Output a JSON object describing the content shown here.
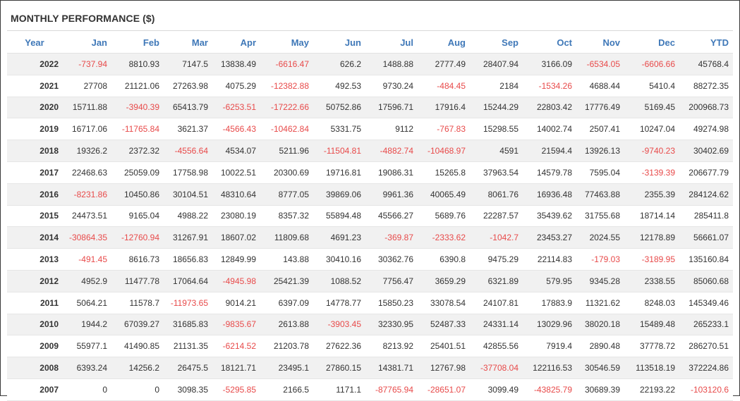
{
  "title": "MONTHLY PERFORMANCE ($)",
  "colors": {
    "header_text": "#3f78b8",
    "negative": "#e84a4a",
    "text": "#333333",
    "stripe": "#f1f1f1"
  },
  "table": {
    "headers": [
      "Year",
      "Jan",
      "Feb",
      "Mar",
      "Apr",
      "May",
      "Jun",
      "Jul",
      "Aug",
      "Sep",
      "Oct",
      "Nov",
      "Dec",
      "YTD"
    ],
    "rows": [
      [
        "2022",
        "-737.94",
        "8810.93",
        "7147.5",
        "13838.49",
        "-6616.47",
        "626.2",
        "1488.88",
        "2777.49",
        "28407.94",
        "3166.09",
        "-6534.05",
        "-6606.66",
        "45768.4"
      ],
      [
        "2021",
        "27708",
        "21121.06",
        "27263.98",
        "4075.29",
        "-12382.88",
        "492.53",
        "9730.24",
        "-484.45",
        "2184",
        "-1534.26",
        "4688.44",
        "5410.4",
        "88272.35"
      ],
      [
        "2020",
        "15711.88",
        "-3940.39",
        "65413.79",
        "-6253.51",
        "-17222.66",
        "50752.86",
        "17596.71",
        "17916.4",
        "15244.29",
        "22803.42",
        "17776.49",
        "5169.45",
        "200968.73"
      ],
      [
        "2019",
        "16717.06",
        "-11765.84",
        "3621.37",
        "-4566.43",
        "-10462.84",
        "5331.75",
        "9112",
        "-767.83",
        "15298.55",
        "14002.74",
        "2507.41",
        "10247.04",
        "49274.98"
      ],
      [
        "2018",
        "19326.2",
        "2372.32",
        "-4556.64",
        "4534.07",
        "5211.96",
        "-11504.81",
        "-4882.74",
        "-10468.97",
        "4591",
        "21594.4",
        "13926.13",
        "-9740.23",
        "30402.69"
      ],
      [
        "2017",
        "22468.63",
        "25059.09",
        "17758.98",
        "10022.51",
        "20300.69",
        "19716.81",
        "19086.31",
        "15265.8",
        "37963.54",
        "14579.78",
        "7595.04",
        "-3139.39",
        "206677.79"
      ],
      [
        "2016",
        "-8231.86",
        "10450.86",
        "30104.51",
        "48310.64",
        "8777.05",
        "39869.06",
        "9961.36",
        "40065.49",
        "8061.76",
        "16936.48",
        "77463.88",
        "2355.39",
        "284124.62"
      ],
      [
        "2015",
        "24473.51",
        "9165.04",
        "4988.22",
        "23080.19",
        "8357.32",
        "55894.48",
        "45566.27",
        "5689.76",
        "22287.57",
        "35439.62",
        "31755.68",
        "18714.14",
        "285411.8"
      ],
      [
        "2014",
        "-30864.35",
        "-12760.94",
        "31267.91",
        "18607.02",
        "11809.68",
        "4691.23",
        "-369.87",
        "-2333.62",
        "-1042.7",
        "23453.27",
        "2024.55",
        "12178.89",
        "56661.07"
      ],
      [
        "2013",
        "-491.45",
        "8616.73",
        "18656.83",
        "12849.99",
        "143.88",
        "30410.16",
        "30362.76",
        "6390.8",
        "9475.29",
        "22114.83",
        "-179.03",
        "-3189.95",
        "135160.84"
      ],
      [
        "2012",
        "4952.9",
        "11477.78",
        "17064.64",
        "-4945.98",
        "25421.39",
        "1088.52",
        "7756.47",
        "3659.29",
        "6321.89",
        "579.95",
        "9345.28",
        "2338.55",
        "85060.68"
      ],
      [
        "2011",
        "5064.21",
        "11578.7",
        "-11973.65",
        "9014.21",
        "6397.09",
        "14778.77",
        "15850.23",
        "33078.54",
        "24107.81",
        "17883.9",
        "11321.62",
        "8248.03",
        "145349.46"
      ],
      [
        "2010",
        "1944.2",
        "67039.27",
        "31685.83",
        "-9835.67",
        "2613.88",
        "-3903.45",
        "32330.95",
        "52487.33",
        "24331.14",
        "13029.96",
        "38020.18",
        "15489.48",
        "265233.1"
      ],
      [
        "2009",
        "55977.1",
        "41490.85",
        "21131.35",
        "-6214.52",
        "21203.78",
        "27622.36",
        "8213.92",
        "25401.51",
        "42855.56",
        "7919.4",
        "2890.48",
        "37778.72",
        "286270.51"
      ],
      [
        "2008",
        "6393.24",
        "14256.2",
        "26475.5",
        "18121.71",
        "23495.1",
        "27860.15",
        "14381.71",
        "12767.98",
        "-37708.04",
        "122116.53",
        "30546.59",
        "113518.19",
        "372224.86"
      ],
      [
        "2007",
        "0",
        "0",
        "3098.35",
        "-5295.85",
        "2166.5",
        "1171.1",
        "-87765.94",
        "-28651.07",
        "3099.49",
        "-43825.79",
        "30689.39",
        "22193.22",
        "-103120.6"
      ]
    ]
  }
}
